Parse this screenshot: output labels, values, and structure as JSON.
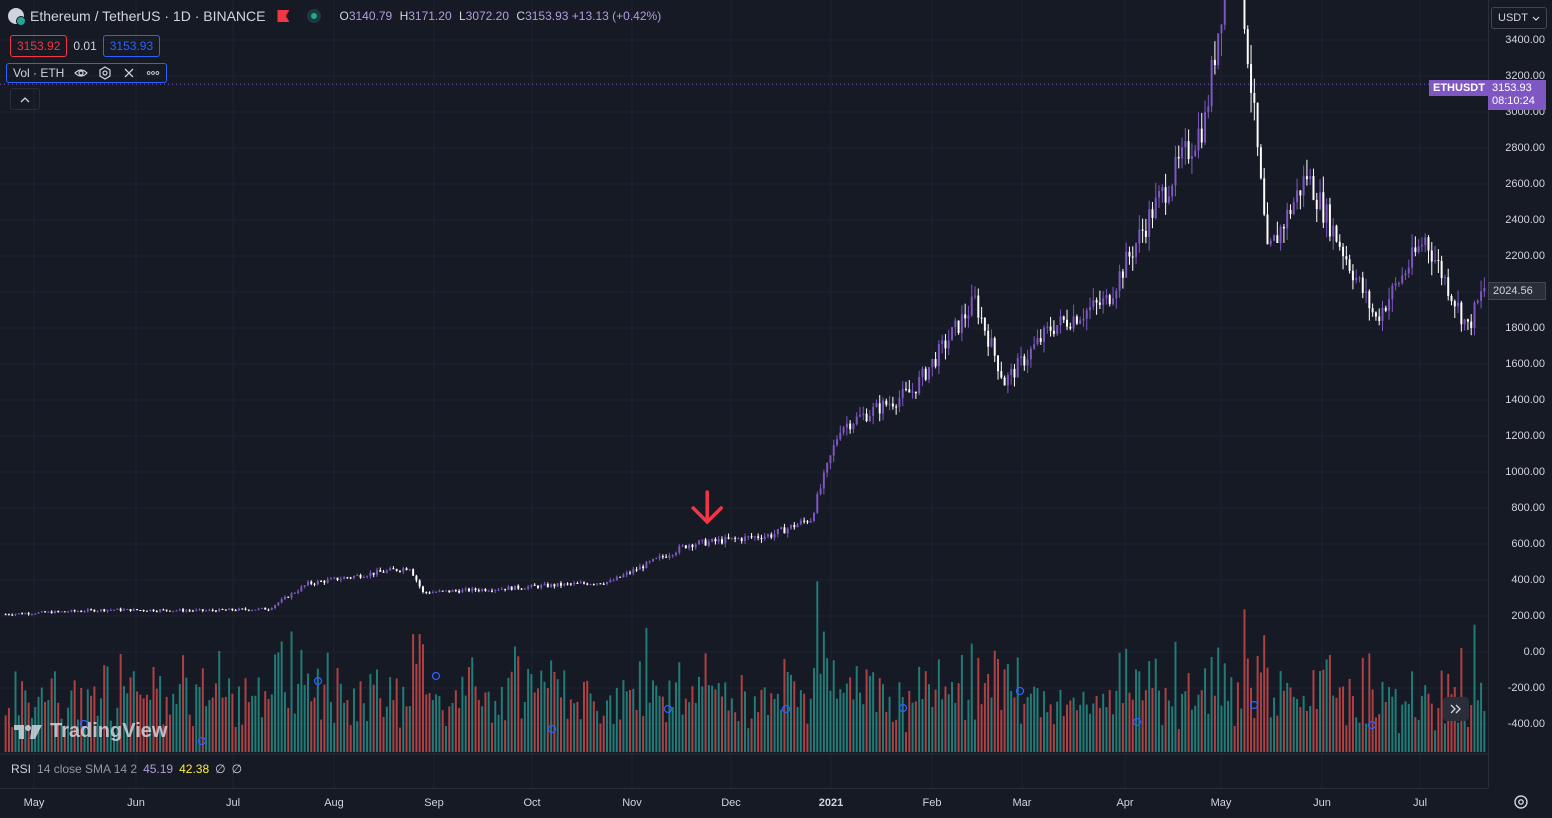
{
  "legend": {
    "symbol": "Ethereum / TetherUS · 1D · BINANCE",
    "open_label": "O",
    "open": "3140.79",
    "high_label": "H",
    "high": "3171.20",
    "low_label": "L",
    "low": "3072.20",
    "close_label": "C",
    "close": "3153.93",
    "change": "+13.13 (+0.42%)"
  },
  "quote": {
    "sell": "3153.92",
    "spread": "0.01",
    "buy": "3153.93"
  },
  "volume_indicator": {
    "label": "Vol · ETH"
  },
  "rsi": {
    "label": "RSI",
    "params": "14 close SMA 14 2",
    "value1": "45.19",
    "value2": "42.38",
    "value3": "∅",
    "value4": "∅"
  },
  "branding": {
    "logo_text": "TradingView"
  },
  "price_axis": {
    "currency": "USDT",
    "ticks": [
      "3400.00",
      "3200.00",
      "3000.00",
      "2800.00",
      "2600.00",
      "2400.00",
      "2200.00",
      "2000.00",
      "1800.00",
      "1600.00",
      "1400.00",
      "1200.00",
      "1000.00",
      "800.00",
      "600.00",
      "400.00",
      "200.00",
      "0.00",
      "-200.00",
      "-400.00"
    ],
    "symbol_tag": "ETHUSDT",
    "last_price": "3153.93",
    "countdown": "08:10:24",
    "crosshair_price": "2024.56"
  },
  "time_axis": {
    "ticks": [
      {
        "label": "May",
        "year": false
      },
      {
        "label": "Jun",
        "year": false
      },
      {
        "label": "Jul",
        "year": false
      },
      {
        "label": "Aug",
        "year": false
      },
      {
        "label": "Sep",
        "year": false
      },
      {
        "label": "Oct",
        "year": false
      },
      {
        "label": "Nov",
        "year": false
      },
      {
        "label": "Dec",
        "year": false
      },
      {
        "label": "2021",
        "year": true
      },
      {
        "label": "Feb",
        "year": false
      },
      {
        "label": "Mar",
        "year": false
      },
      {
        "label": "Apr",
        "year": false
      },
      {
        "label": "May",
        "year": false
      },
      {
        "label": "Jun",
        "year": false
      },
      {
        "label": "Jul",
        "year": false
      }
    ]
  },
  "colors": {
    "background": "#161a25",
    "up_candle": "#7e57c2",
    "down_candle": "#ffffff",
    "volume_up": "#26a69a",
    "volume_down": "#ef5350",
    "marker": "#2962ff",
    "arrow": "#f23645"
  },
  "chart_data": {
    "type": "candlestick",
    "symbol": "ETHUSDT",
    "interval": "1D",
    "y_range": [
      -400,
      3400
    ],
    "x_range": [
      "2020-05",
      "2021-07"
    ],
    "approx_close_trajectory": [
      {
        "date": "2020-05-01",
        "price": 210
      },
      {
        "date": "2020-06-01",
        "price": 235
      },
      {
        "date": "2020-07-01",
        "price": 230
      },
      {
        "date": "2020-07-20",
        "price": 240
      },
      {
        "date": "2020-08-01",
        "price": 380
      },
      {
        "date": "2020-09-01",
        "price": 470
      },
      {
        "date": "2020-09-05",
        "price": 330
      },
      {
        "date": "2020-10-01",
        "price": 355
      },
      {
        "date": "2020-11-01",
        "price": 390
      },
      {
        "date": "2020-11-25",
        "price": 600
      },
      {
        "date": "2020-12-01",
        "price": 610
      },
      {
        "date": "2020-12-20",
        "price": 650
      },
      {
        "date": "2021-01-01",
        "price": 740
      },
      {
        "date": "2021-01-10",
        "price": 1250
      },
      {
        "date": "2021-02-01",
        "price": 1450
      },
      {
        "date": "2021-02-20",
        "price": 1950
      },
      {
        "date": "2021-03-01",
        "price": 1500
      },
      {
        "date": "2021-03-15",
        "price": 1800
      },
      {
        "date": "2021-04-01",
        "price": 1950
      },
      {
        "date": "2021-04-15",
        "price": 2450
      },
      {
        "date": "2021-05-01",
        "price": 2950
      },
      {
        "date": "2021-05-10",
        "price": 4100
      },
      {
        "date": "2021-05-20",
        "price": 2200
      },
      {
        "date": "2021-06-01",
        "price": 2650
      },
      {
        "date": "2021-06-22",
        "price": 1850
      },
      {
        "date": "2021-07-07",
        "price": 2300
      },
      {
        "date": "2021-07-20",
        "price": 1800
      },
      {
        "date": "2021-07-25",
        "price": 2024
      }
    ],
    "annotation": {
      "type": "down-arrow",
      "near_date": "2020-12-01"
    }
  }
}
